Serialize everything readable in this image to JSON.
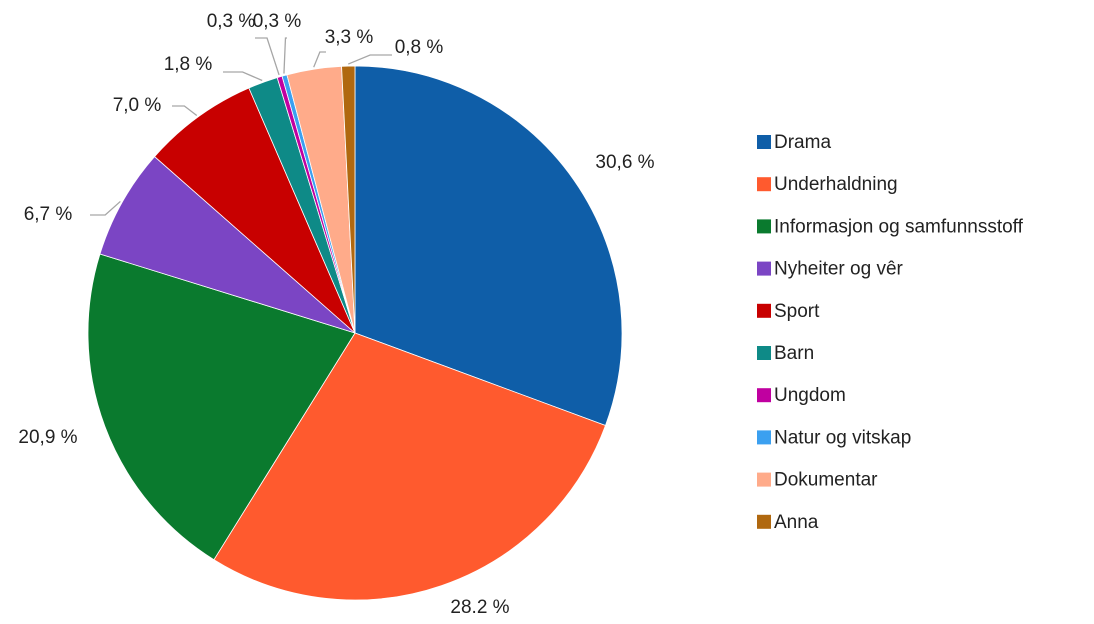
{
  "chart_data": {
    "type": "pie",
    "categories": [
      "Drama",
      "Underhaldning",
      "Informasjon og samfunnsstoff",
      "Nyheiter og vêr",
      "Sport",
      "Barn",
      "Ungdom",
      "Natur og vitskap",
      "Dokumentar",
      "Anna"
    ],
    "values": [
      30.6,
      28.2,
      20.9,
      6.7,
      7.0,
      1.8,
      0.3,
      0.3,
      3.3,
      0.8
    ],
    "value_labels": [
      "30,6 %",
      "28.2 %",
      "20,9 %",
      "6,7 %",
      "7,0 %",
      "1,8 %",
      "0,3 %",
      "0,3 %",
      "3,3 %",
      "0,8 %"
    ],
    "colors": [
      "#0f5ea8",
      "#ff5a2e",
      "#0a7a2e",
      "#7b45c4",
      "#c80000",
      "#0e8a87",
      "#c000a0",
      "#3ba0f0",
      "#ffab8a",
      "#b0680f"
    ],
    "legend": "right"
  }
}
